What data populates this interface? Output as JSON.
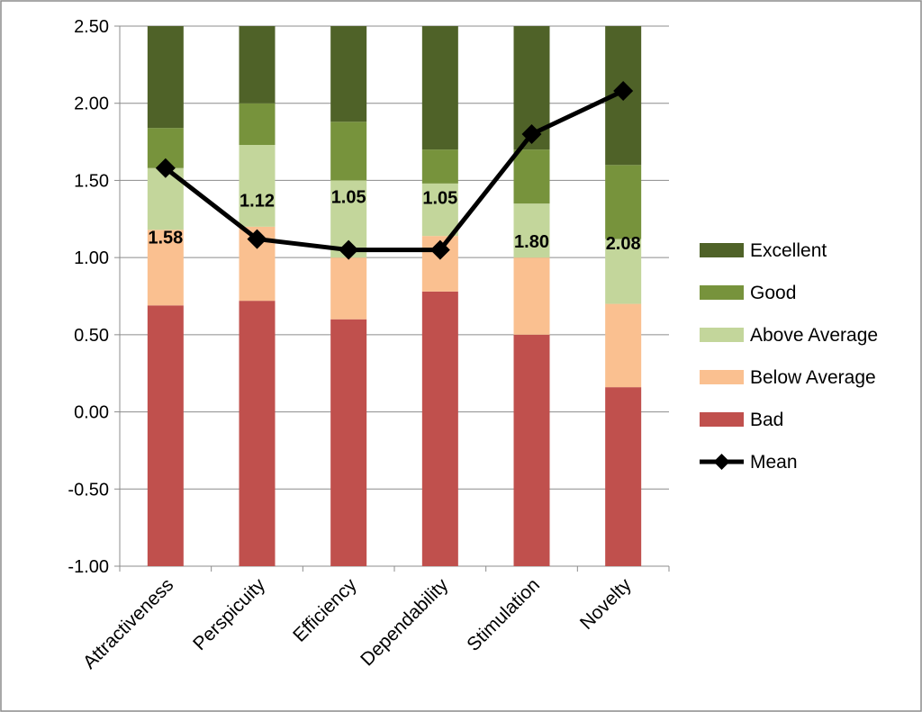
{
  "chart_data": {
    "type": "bar",
    "stacked": true,
    "categories": [
      "Attractiveness",
      "Perspicuity",
      "Efficiency",
      "Dependability",
      "Stimulation",
      "Novelty"
    ],
    "ylim": [
      -1.0,
      2.5
    ],
    "yticks": [
      "2.50",
      "2.00",
      "1.50",
      "1.00",
      "0.50",
      "0.00",
      "-0.50",
      "-1.00"
    ],
    "ytick_values": [
      2.5,
      2.0,
      1.5,
      1.0,
      0.5,
      0.0,
      -0.5,
      -1.0
    ],
    "grid": true,
    "legend_position": "right",
    "bands": [
      {
        "name": "Bad",
        "color": "#C0504D",
        "upper": [
          0.69,
          0.72,
          0.6,
          0.78,
          0.5,
          0.16
        ]
      },
      {
        "name": "Below Average",
        "color": "#FAC090",
        "upper": [
          1.18,
          1.2,
          1.0,
          1.14,
          1.0,
          0.7
        ]
      },
      {
        "name": "Above Average",
        "color": "#C3D69B",
        "upper": [
          1.58,
          1.73,
          1.5,
          1.48,
          1.35,
          1.12
        ]
      },
      {
        "name": "Good",
        "color": "#77933C",
        "upper": [
          1.84,
          2.0,
          1.88,
          1.7,
          1.7,
          1.6
        ]
      },
      {
        "name": "Excellent",
        "color": "#4F6228",
        "upper": [
          2.5,
          2.5,
          2.5,
          2.5,
          2.5,
          2.5
        ]
      }
    ],
    "series": [
      {
        "name": "Mean",
        "color": "#000000",
        "values": [
          1.58,
          1.12,
          1.05,
          1.05,
          1.8,
          2.08
        ],
        "labels": [
          "1.58",
          "1.12",
          "1.05",
          "1.05",
          "1.80",
          "2.08"
        ]
      }
    ],
    "legend": [
      "Excellent",
      "Good",
      "Above Average",
      "Below Average",
      "Bad",
      "Mean"
    ]
  }
}
